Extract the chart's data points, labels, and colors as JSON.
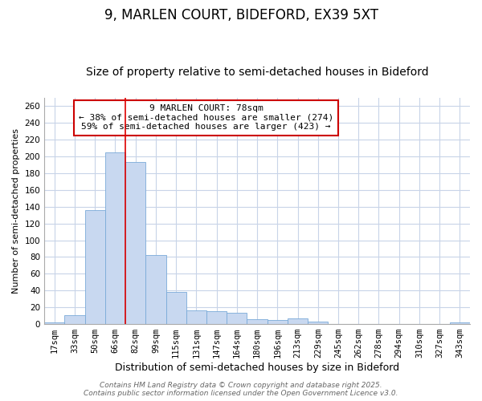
{
  "title1": "9, MARLEN COURT, BIDEFORD, EX39 5XT",
  "title2": "Size of property relative to semi-detached houses in Bideford",
  "xlabel": "Distribution of semi-detached houses by size in Bideford",
  "ylabel": "Number of semi-detached properties",
  "categories": [
    "17sqm",
    "33sqm",
    "50sqm",
    "66sqm",
    "82sqm",
    "99sqm",
    "115sqm",
    "131sqm",
    "147sqm",
    "164sqm",
    "180sqm",
    "196sqm",
    "213sqm",
    "229sqm",
    "245sqm",
    "262sqm",
    "278sqm",
    "294sqm",
    "310sqm",
    "327sqm",
    "343sqm"
  ],
  "values": [
    2,
    11,
    136,
    205,
    193,
    82,
    38,
    16,
    15,
    13,
    6,
    5,
    7,
    3,
    0,
    0,
    0,
    0,
    0,
    0,
    2
  ],
  "bar_color": "#c8d8f0",
  "bar_edge_color": "#7aaad8",
  "vline_x_index": 4,
  "vline_color": "#dd0000",
  "annotation_line1": "9 MARLEN COURT: 78sqm",
  "annotation_line2": "← 38% of semi-detached houses are smaller (274)",
  "annotation_line3": "59% of semi-detached houses are larger (423) →",
  "annotation_box_color": "#ffffff",
  "annotation_box_edge": "#cc0000",
  "ylim": [
    0,
    270
  ],
  "yticks": [
    0,
    20,
    40,
    60,
    80,
    100,
    120,
    140,
    160,
    180,
    200,
    220,
    240,
    260
  ],
  "footer1": "Contains HM Land Registry data © Crown copyright and database right 2025.",
  "footer2": "Contains public sector information licensed under the Open Government Licence v3.0.",
  "background_color": "#ffffff",
  "plot_bg_color": "#ffffff",
  "grid_color": "#c8d4e8",
  "title1_fontsize": 12,
  "title2_fontsize": 10,
  "xlabel_fontsize": 9,
  "ylabel_fontsize": 8,
  "tick_fontsize": 7.5,
  "annotation_fontsize": 8,
  "footer_fontsize": 6.5
}
